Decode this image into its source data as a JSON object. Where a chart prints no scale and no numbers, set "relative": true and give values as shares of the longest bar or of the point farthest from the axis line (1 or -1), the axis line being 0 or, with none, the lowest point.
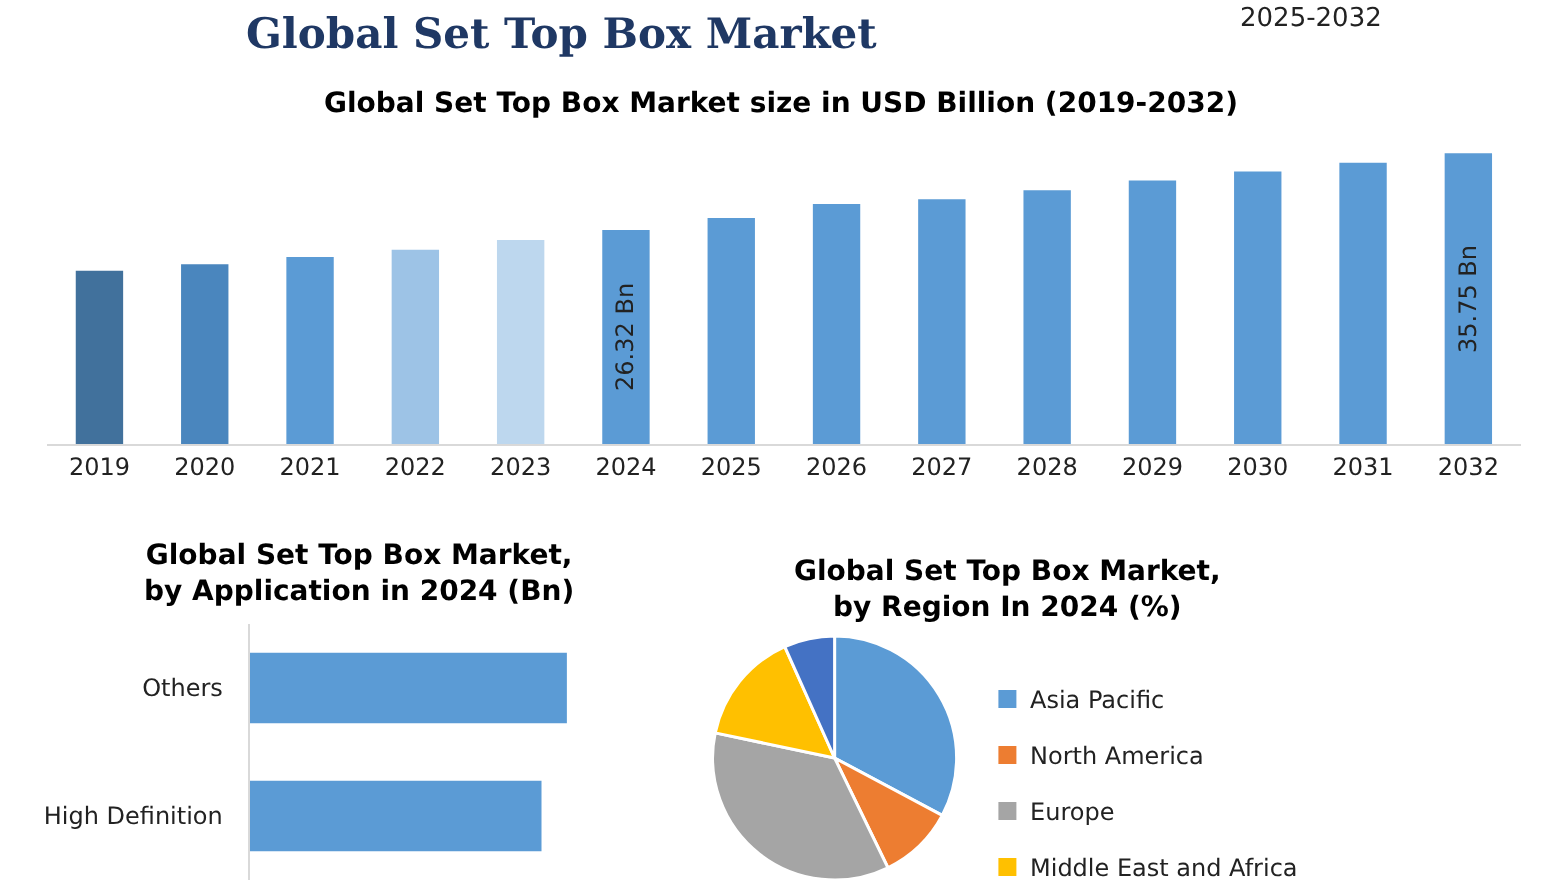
{
  "chart_data": [
    {
      "type": "bar",
      "title": "Global Set Top Box Market size in USD Billion (2019-2032)",
      "annotations": [
        "Global Set Top Box Market",
        "2025-2032"
      ],
      "categories": [
        "2019",
        "2020",
        "2021",
        "2022",
        "2023",
        "2024",
        "2025",
        "2026",
        "2027",
        "2028",
        "2029",
        "2030",
        "2031",
        "2032"
      ],
      "values": [
        21.3,
        22.1,
        23.0,
        23.9,
        25.1,
        26.32,
        27.8,
        29.5,
        30.1,
        31.2,
        32.4,
        33.5,
        34.6,
        35.75
      ],
      "colors": [
        "#41719c",
        "#4a86be",
        "#5b9bd5",
        "#9dc3e6",
        "#bdd7ee",
        "#5b9bd5",
        "#5b9bd5",
        "#5b9bd5",
        "#5b9bd5",
        "#5b9bd5",
        "#5b9bd5",
        "#5b9bd5",
        "#5b9bd5",
        "#5b9bd5"
      ],
      "value_labels": [
        null,
        null,
        null,
        null,
        null,
        "26.32 Bn",
        null,
        null,
        null,
        null,
        null,
        null,
        null,
        "35.75 Bn"
      ]
    },
    {
      "type": "bar",
      "orientation": "horizontal",
      "relative": true,
      "title": "Global Set Top Box Market, by Application in 2024 (Bn)",
      "categories": [
        "Others",
        "High Definition"
      ],
      "values": [
        1,
        0.92
      ],
      "color": "#5b9bd5"
    },
    {
      "type": "pie",
      "title": "Global Set Top Box Market, by Region In 2024 (%)",
      "categories": [
        "Asia Pacific",
        "North America",
        "Europe",
        "Middle East and Africa",
        null
      ],
      "values": [
        32.8,
        10,
        35.5,
        15,
        6.7
      ],
      "colors": [
        "#5b9bd5",
        "#ed7d31",
        "#a5a5a5",
        "#ffc000",
        "#4472c4"
      ],
      "legend": "right"
    }
  ]
}
